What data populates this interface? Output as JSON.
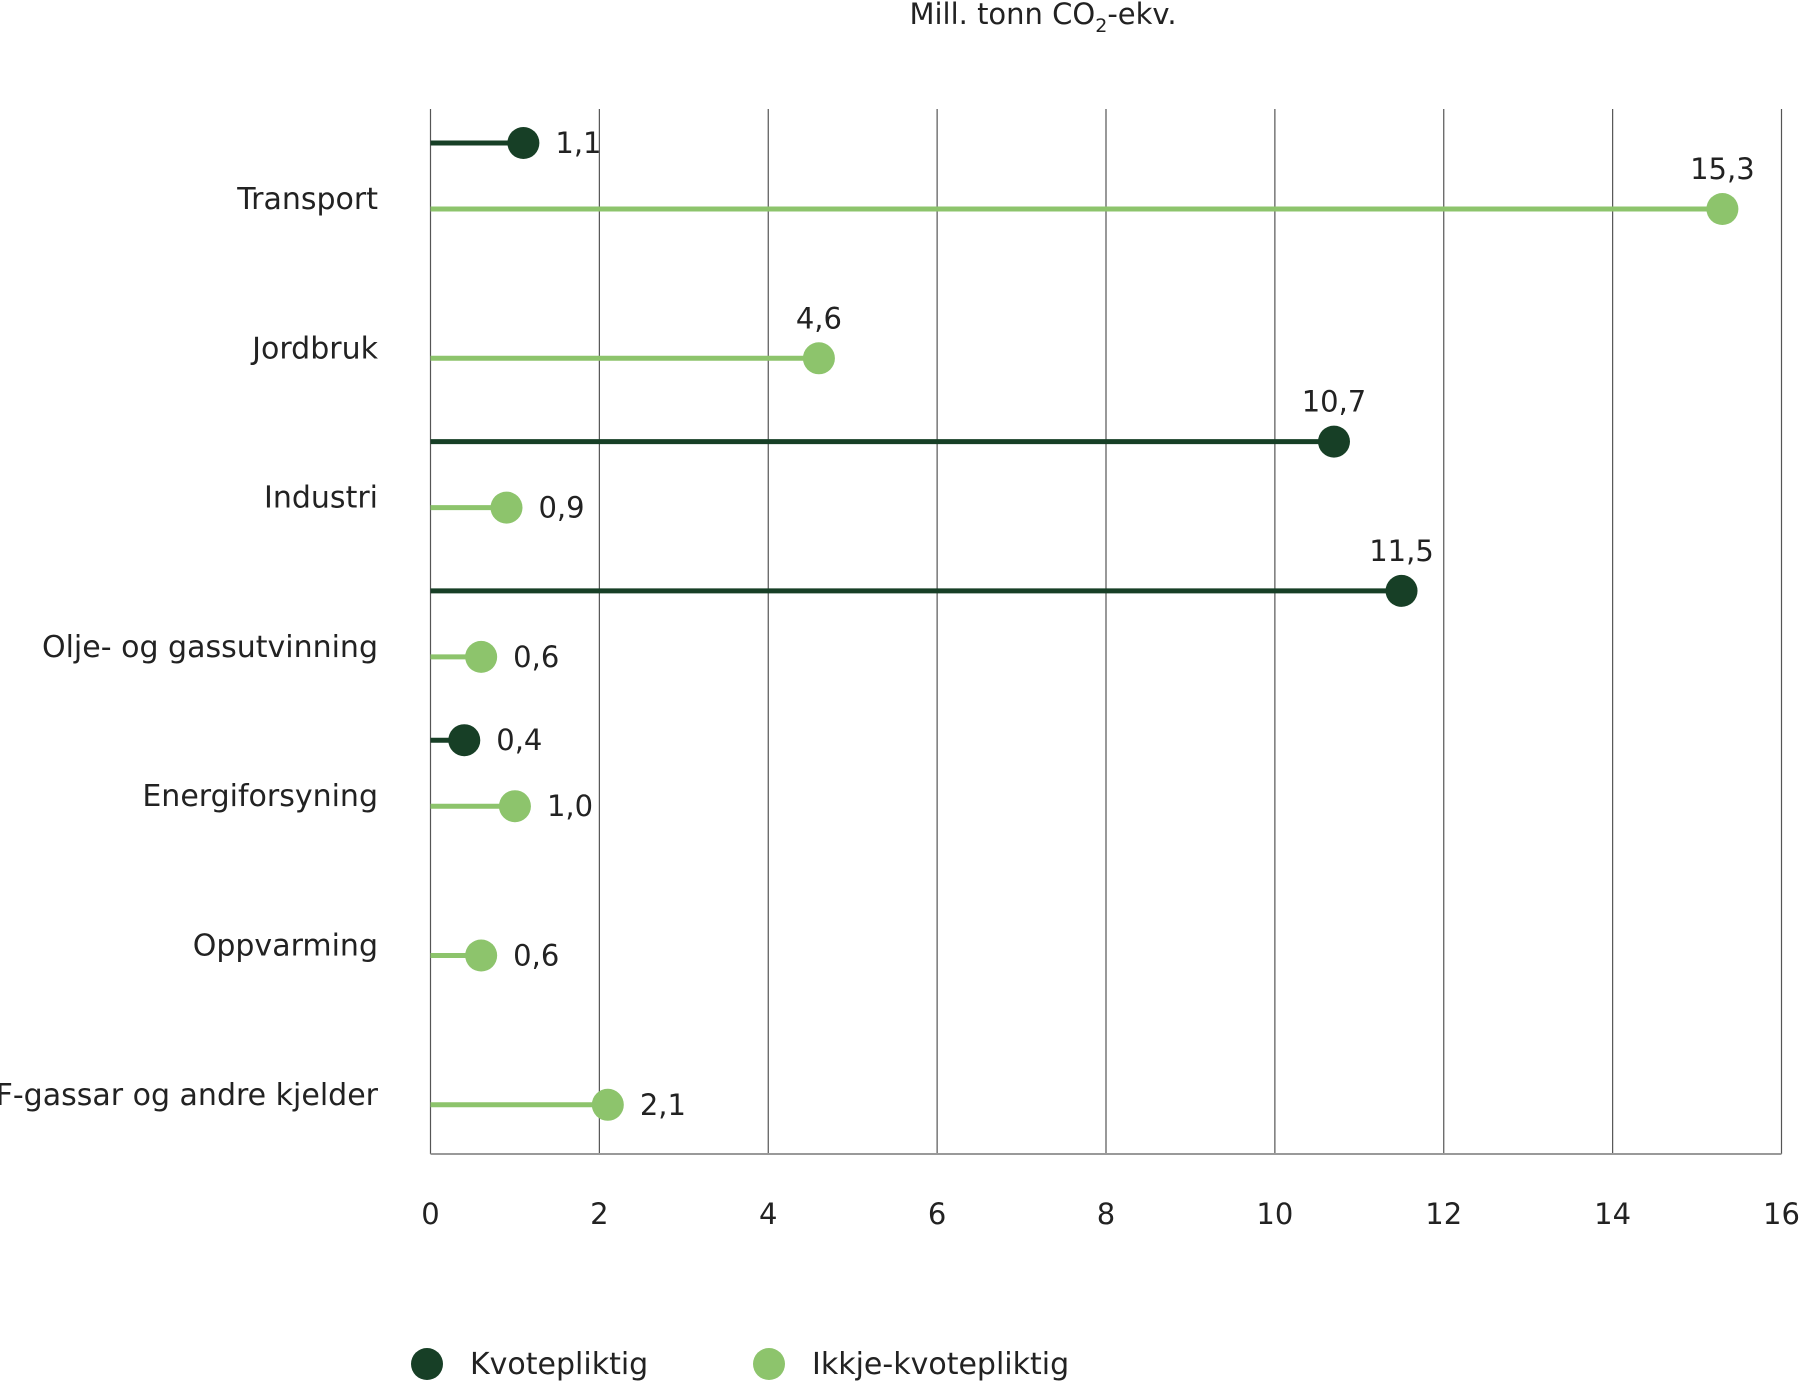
{
  "chart_data": {
    "type": "lollipop-bar",
    "title": "Mill. tonn CO₂-ekv.",
    "title_parts": {
      "pre": "Mill. tonn CO",
      "sub": "2",
      "post": "-ekv."
    },
    "xlim": [
      0,
      16
    ],
    "x_ticks": [
      "0",
      "2",
      "4",
      "6",
      "8",
      "10",
      "12",
      "14",
      "16"
    ],
    "grid": true,
    "orientation": "horizontal",
    "legend_position": "bottom",
    "categories": [
      "Transport",
      "Jordbruk",
      "Industri",
      "Olje- og gassutvinning",
      "Energiforsyning",
      "Oppvarming",
      "F-gassar og andre kjelder"
    ],
    "series": [
      {
        "name": "Kvotepliktig",
        "color": "#173f26",
        "values": [
          1.1,
          null,
          10.7,
          11.5,
          0.4,
          null,
          null
        ],
        "labels": [
          "1,1",
          null,
          "10,7",
          "11,5",
          "0,4",
          null,
          null
        ]
      },
      {
        "name": "Ikkje-kvotepliktig",
        "color": "#8dc46c",
        "values": [
          15.3,
          4.6,
          0.9,
          0.6,
          1.0,
          0.6,
          2.1
        ],
        "labels": [
          "15,3",
          "4,6",
          "0,9",
          "0,6",
          "1,0",
          "0,6",
          "2,1"
        ]
      }
    ]
  }
}
